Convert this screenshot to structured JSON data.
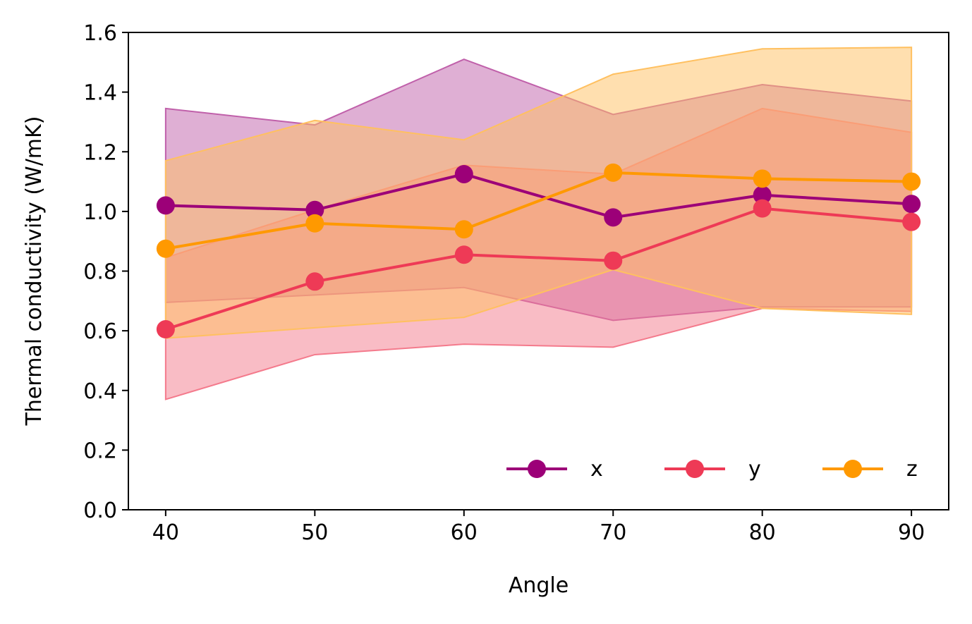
{
  "chart_data": {
    "type": "line",
    "title": "",
    "xlabel": "Angle",
    "ylabel": "Thermal conductivity (W/mK)",
    "x": [
      40,
      50,
      60,
      70,
      80,
      90
    ],
    "xlim": [
      37.5,
      92.5
    ],
    "ylim": [
      0.0,
      1.6
    ],
    "xticks": [
      40,
      50,
      60,
      70,
      80,
      90
    ],
    "yticks": [
      0.0,
      0.2,
      0.4,
      0.6,
      0.8,
      1.0,
      1.2,
      1.4,
      1.6
    ],
    "ytick_labels": [
      "0.0",
      "0.2",
      "0.4",
      "0.6",
      "0.8",
      "1.0",
      "1.2",
      "1.4",
      "1.6"
    ],
    "grid": false,
    "legend": {
      "placement": "lower-right",
      "columns": 3
    },
    "series": [
      {
        "name": "x",
        "color": "#9c0078",
        "band_color": "#c060aa",
        "values": [
          1.02,
          1.005,
          1.125,
          0.98,
          1.055,
          1.025
        ],
        "lower": [
          0.695,
          0.72,
          0.745,
          0.635,
          0.68,
          0.68
        ],
        "upper": [
          1.345,
          1.29,
          1.51,
          1.325,
          1.425,
          1.37
        ]
      },
      {
        "name": "y",
        "color": "#ee3a56",
        "band_color": "#f47a8c",
        "values": [
          0.605,
          0.765,
          0.855,
          0.835,
          1.01,
          0.965
        ],
        "lower": [
          0.37,
          0.52,
          0.555,
          0.545,
          0.675,
          0.665
        ],
        "upper": [
          0.845,
          1.005,
          1.155,
          1.125,
          1.345,
          1.265
        ]
      },
      {
        "name": "z",
        "color": "#ff9900",
        "band_color": "#ffc060",
        "values": [
          0.875,
          0.96,
          0.94,
          1.13,
          1.11,
          1.1
        ],
        "lower": [
          0.575,
          0.61,
          0.645,
          0.805,
          0.675,
          0.655
        ],
        "upper": [
          1.17,
          1.305,
          1.24,
          1.46,
          1.545,
          1.55
        ]
      }
    ]
  }
}
